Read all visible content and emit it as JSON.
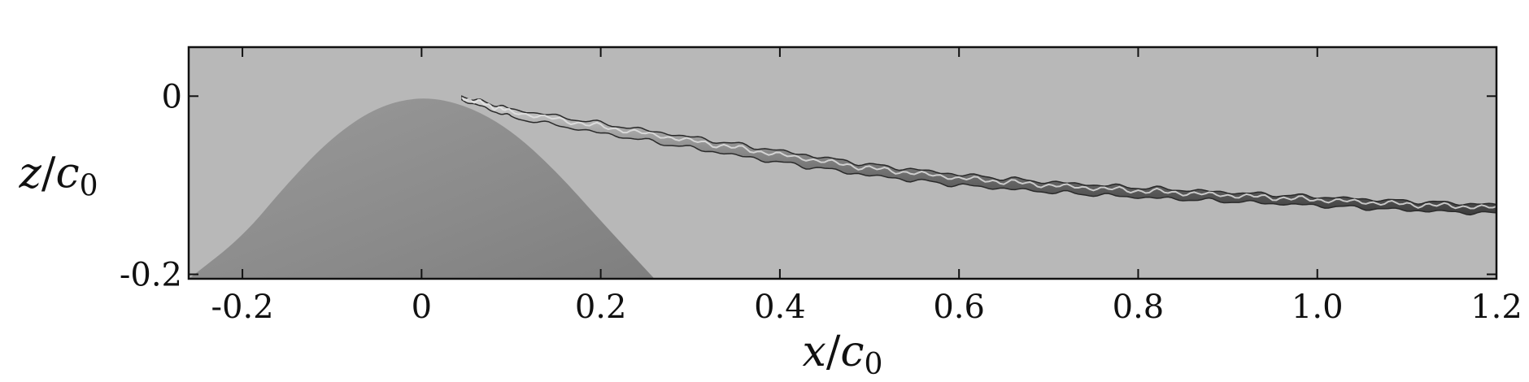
{
  "chart_data": {
    "type": "area",
    "title": "",
    "xlabel": "x/c0",
    "xlabel_parts": {
      "var": "x",
      "slash": "/",
      "base": "c",
      "sub": "0"
    },
    "ylabel": "z/c0",
    "ylabel_parts": {
      "var": "z",
      "slash": "/",
      "base": "c",
      "sub": "0"
    },
    "xlim": [
      -0.26,
      1.2
    ],
    "ylim": [
      -0.205,
      0.055
    ],
    "x_ticks": [
      {
        "value": -0.2,
        "label": "-0.2"
      },
      {
        "value": 0,
        "label": "0"
      },
      {
        "value": 0.2,
        "label": "0.2"
      },
      {
        "value": 0.4,
        "label": "0.4"
      },
      {
        "value": 0.6,
        "label": "0.6"
      },
      {
        "value": 0.8,
        "label": "0.8"
      },
      {
        "value": 1.0,
        "label": "1.0"
      },
      {
        "value": 1.2,
        "label": "1.2"
      }
    ],
    "y_ticks": [
      {
        "value": 0,
        "label": "0"
      },
      {
        "value": -0.2,
        "label": "-0.2"
      }
    ],
    "grid": false,
    "legend": "none",
    "colors": {
      "background_fluid": "#b8b8b8",
      "body": "#8a8a8a",
      "vortex": "#6e6e6e",
      "frame": "#111111"
    },
    "body_shape": {
      "x": [
        -0.26,
        -0.2,
        -0.15,
        -0.1,
        -0.05,
        0,
        0.05,
        0.1,
        0.15,
        0.2,
        0.26
      ],
      "z": [
        -0.205,
        -0.158,
        -0.098,
        -0.046,
        -0.012,
        0,
        -0.01,
        -0.038,
        -0.084,
        -0.14,
        -0.205
      ]
    },
    "vortex_core": {
      "x": [
        0.045,
        0.1,
        0.2,
        0.3,
        0.4,
        0.5,
        0.6,
        0.7,
        0.8,
        0.9,
        1.0,
        1.1,
        1.2
      ],
      "z": [
        -0.002,
        -0.019,
        -0.036,
        -0.052,
        -0.068,
        -0.083,
        -0.094,
        -0.102,
        -0.108,
        -0.113,
        -0.118,
        -0.123,
        -0.127
      ],
      "thickness": [
        0.004,
        0.009,
        0.011,
        0.012,
        0.013,
        0.012,
        0.012,
        0.011,
        0.011,
        0.01,
        0.01,
        0.01,
        0.01
      ]
    }
  }
}
